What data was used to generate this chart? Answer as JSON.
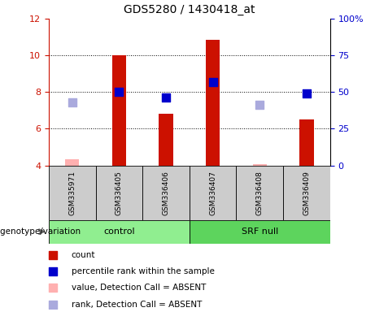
{
  "title": "GDS5280 / 1430418_at",
  "samples": [
    "GSM335971",
    "GSM336405",
    "GSM336406",
    "GSM336407",
    "GSM336408",
    "GSM336409"
  ],
  "count_values": [
    4.35,
    10.0,
    6.8,
    10.85,
    4.05,
    6.5
  ],
  "percentile_values": [
    43.0,
    50.0,
    46.5,
    57.0,
    41.5,
    49.0
  ],
  "absent_mask": [
    true,
    false,
    false,
    false,
    true,
    false
  ],
  "ylim_left": [
    4,
    12
  ],
  "ylim_right": [
    0,
    100
  ],
  "yticks_left": [
    4,
    6,
    8,
    10,
    12
  ],
  "yticks_right": [
    0,
    25,
    50,
    75,
    100
  ],
  "yticklabels_right": [
    "0",
    "25",
    "50",
    "75",
    "100%"
  ],
  "group_labels": [
    "control",
    "SRF null"
  ],
  "group_col_ranges": [
    [
      0,
      3
    ],
    [
      3,
      6
    ]
  ],
  "group_colors": [
    "#90EE90",
    "#5DD45D"
  ],
  "bar_color_present": "#CC1100",
  "bar_color_absent": "#FFB0B0",
  "dot_color_present": "#0000CC",
  "dot_color_absent": "#AAAADD",
  "bar_width": 0.3,
  "dot_size": 45,
  "background_label": "#CCCCCC",
  "legend_items": [
    {
      "label": "count",
      "color": "#CC1100"
    },
    {
      "label": "percentile rank within the sample",
      "color": "#0000CC"
    },
    {
      "label": "value, Detection Call = ABSENT",
      "color": "#FFB0B0"
    },
    {
      "label": "rank, Detection Call = ABSENT",
      "color": "#AAAADD"
    }
  ],
  "title_fontsize": 10,
  "tick_fontsize": 8,
  "genotype_label": "genotype/variation"
}
